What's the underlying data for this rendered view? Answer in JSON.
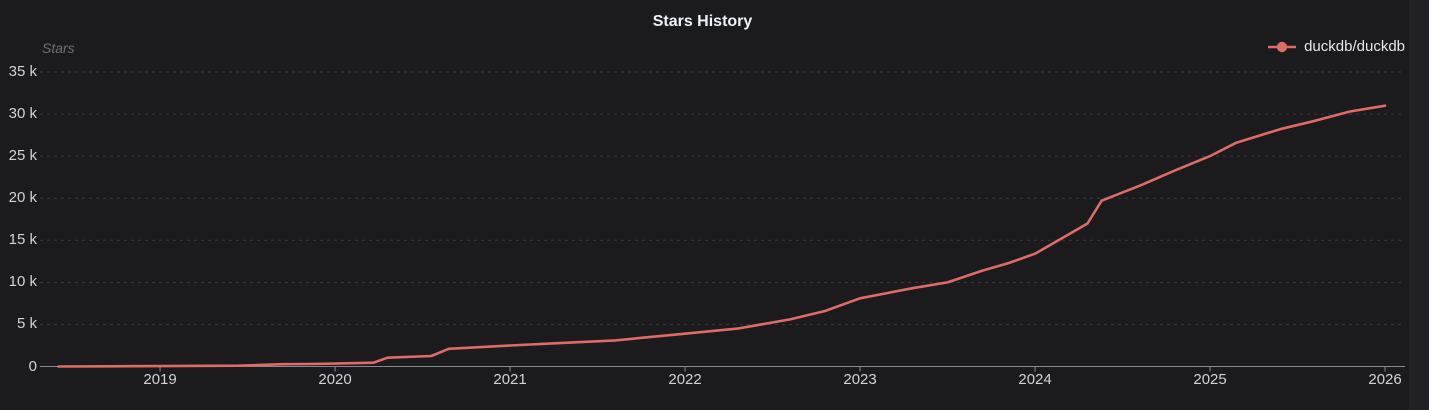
{
  "colors": {
    "background": "#1b1b1d",
    "right_gutter": "#212125",
    "series_line": "#dd6b66",
    "axis": "#87878f",
    "grid": "#3a3a41",
    "tick_label": "#d2d2d8",
    "title": "#eef1fa",
    "axis_name": "#6f6f76",
    "legend_text": "#e6e6ec"
  },
  "chart_data": {
    "type": "line",
    "title": "Stars History",
    "ylabel": "Stars",
    "legend_position": "top-right",
    "grid": "horizontal dashed",
    "xlim": [
      2018.314,
      2026.114
    ],
    "ylim": [
      0,
      35
    ],
    "y_unit": "thousands of stars",
    "x_ticks": [
      {
        "value": 2019,
        "label": "2019"
      },
      {
        "value": 2020,
        "label": "2020"
      },
      {
        "value": 2021,
        "label": "2021"
      },
      {
        "value": 2022,
        "label": "2022"
      },
      {
        "value": 2023,
        "label": "2023"
      },
      {
        "value": 2024,
        "label": "2024"
      },
      {
        "value": 2025,
        "label": "2025"
      },
      {
        "value": 2026,
        "label": "2026"
      }
    ],
    "y_ticks": [
      {
        "value": 0,
        "label": "0"
      },
      {
        "value": 5,
        "label": "5 k"
      },
      {
        "value": 10,
        "label": "10 k"
      },
      {
        "value": 15,
        "label": "15 k"
      },
      {
        "value": 20,
        "label": "20 k"
      },
      {
        "value": 25,
        "label": "25 k"
      },
      {
        "value": 30,
        "label": "30 k"
      },
      {
        "value": 35,
        "label": "35 k"
      }
    ],
    "series": [
      {
        "name": "duckdb/duckdb",
        "color": "#dd6b66",
        "points": [
          [
            2018.42,
            0.0
          ],
          [
            2018.7,
            0.02
          ],
          [
            2019.0,
            0.05
          ],
          [
            2019.45,
            0.1
          ],
          [
            2019.7,
            0.27
          ],
          [
            2019.85,
            0.3
          ],
          [
            2020.0,
            0.35
          ],
          [
            2020.22,
            0.45
          ],
          [
            2020.3,
            1.05
          ],
          [
            2020.55,
            1.25
          ],
          [
            2020.65,
            2.1
          ],
          [
            2021.0,
            2.5
          ],
          [
            2021.3,
            2.8
          ],
          [
            2021.6,
            3.1
          ],
          [
            2022.0,
            3.9
          ],
          [
            2022.3,
            4.5
          ],
          [
            2022.6,
            5.6
          ],
          [
            2022.8,
            6.6
          ],
          [
            2023.0,
            8.1
          ],
          [
            2023.3,
            9.3
          ],
          [
            2023.5,
            10.0
          ],
          [
            2023.7,
            11.4
          ],
          [
            2023.85,
            12.3
          ],
          [
            2024.0,
            13.4
          ],
          [
            2024.15,
            15.2
          ],
          [
            2024.3,
            17.0
          ],
          [
            2024.38,
            19.7
          ],
          [
            2024.6,
            21.5
          ],
          [
            2024.8,
            23.3
          ],
          [
            2025.0,
            25.0
          ],
          [
            2025.15,
            26.6
          ],
          [
            2025.4,
            28.2
          ],
          [
            2025.6,
            29.2
          ],
          [
            2025.8,
            30.3
          ],
          [
            2026.0,
            31.0
          ]
        ]
      }
    ]
  }
}
